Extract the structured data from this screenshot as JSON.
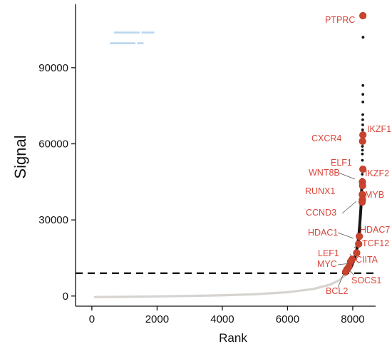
{
  "chart_data": {
    "type": "scatter",
    "title": "",
    "xlabel": "Rank",
    "ylabel": "Signal",
    "xlim": [
      -500,
      8700
    ],
    "ylim": [
      -4000,
      115000
    ],
    "xticks": [
      0,
      2000,
      4000,
      6000,
      8000
    ],
    "yticks": [
      0,
      30000,
      60000,
      90000
    ],
    "x_tick_labels": [
      "0",
      "2000",
      "4000",
      "6000",
      "8000"
    ],
    "y_tick_labels": [
      "0",
      "30000",
      "60000",
      "90000"
    ],
    "threshold": 9000,
    "grid": false,
    "legend": "none",
    "colors": {
      "low_curve": "#d6d3d0",
      "high_curve": "#151515",
      "highlight": "#c8442f",
      "label": "#d9463a"
    },
    "curve": [
      [
        100,
        -400
      ],
      [
        1000,
        -300
      ],
      [
        2000,
        -150
      ],
      [
        3000,
        50
      ],
      [
        4000,
        300
      ],
      [
        5000,
        700
      ],
      [
        6000,
        1500
      ],
      [
        6800,
        2800
      ],
      [
        7300,
        4500
      ],
      [
        7600,
        6300
      ],
      [
        7750,
        8000
      ],
      [
        7850,
        9500
      ],
      [
        7950,
        11500
      ],
      [
        8050,
        14500
      ],
      [
        8120,
        18000
      ],
      [
        8170,
        22000
      ],
      [
        8200,
        26000
      ],
      [
        8230,
        31000
      ],
      [
        8250,
        35000
      ],
      [
        8265,
        39000
      ],
      [
        8275,
        43000
      ],
      [
        8285,
        46000
      ]
    ],
    "outliers": [
      [
        8290,
        48000
      ],
      [
        8292,
        50500
      ],
      [
        8295,
        53500
      ],
      [
        8295,
        56000
      ],
      [
        8297,
        57500
      ],
      [
        8297,
        59000
      ],
      [
        8300,
        62000
      ],
      [
        8300,
        64000
      ],
      [
        8302,
        65500
      ],
      [
        8305,
        67500
      ],
      [
        8305,
        69500
      ],
      [
        8307,
        71500
      ],
      [
        8310,
        76500
      ],
      [
        8310,
        79500
      ],
      [
        8312,
        83000
      ],
      [
        8315,
        102000
      ]
    ],
    "genes": [
      {
        "name": "PTPRC",
        "x": 8310,
        "y": 110500
      },
      {
        "name": "IKZF1",
        "x": 8310,
        "y": 63500
      },
      {
        "name": "CXCR4",
        "x": 8300,
        "y": 61000
      },
      {
        "name": "ELF1",
        "x": 8310,
        "y": 50000
      },
      {
        "name": "WNT8B",
        "x": 8295,
        "y": 45000
      },
      {
        "name": "IKZF2",
        "x": 8300,
        "y": 43500
      },
      {
        "name": "RUNX1",
        "x": 8290,
        "y": 40000
      },
      {
        "name": "MYB",
        "x": 8295,
        "y": 38000
      },
      {
        "name": "CCND3",
        "x": 8285,
        "y": 37000
      },
      {
        "name": "HDAC7",
        "x": 8200,
        "y": 23500
      },
      {
        "name": "HDAC1",
        "x": 8180,
        "y": 20500
      },
      {
        "name": "TCF12",
        "x": 8120,
        "y": 17000
      },
      {
        "name": "CIITA",
        "x": 7980,
        "y": 14500
      },
      {
        "name": "LEF1",
        "x": 7930,
        "y": 13500
      },
      {
        "name": "MYC",
        "x": 7880,
        "y": 11500
      },
      {
        "name": "SOCS1",
        "x": 7820,
        "y": 10500
      },
      {
        "name": "BCL2",
        "x": 7780,
        "y": 9500
      }
    ]
  }
}
